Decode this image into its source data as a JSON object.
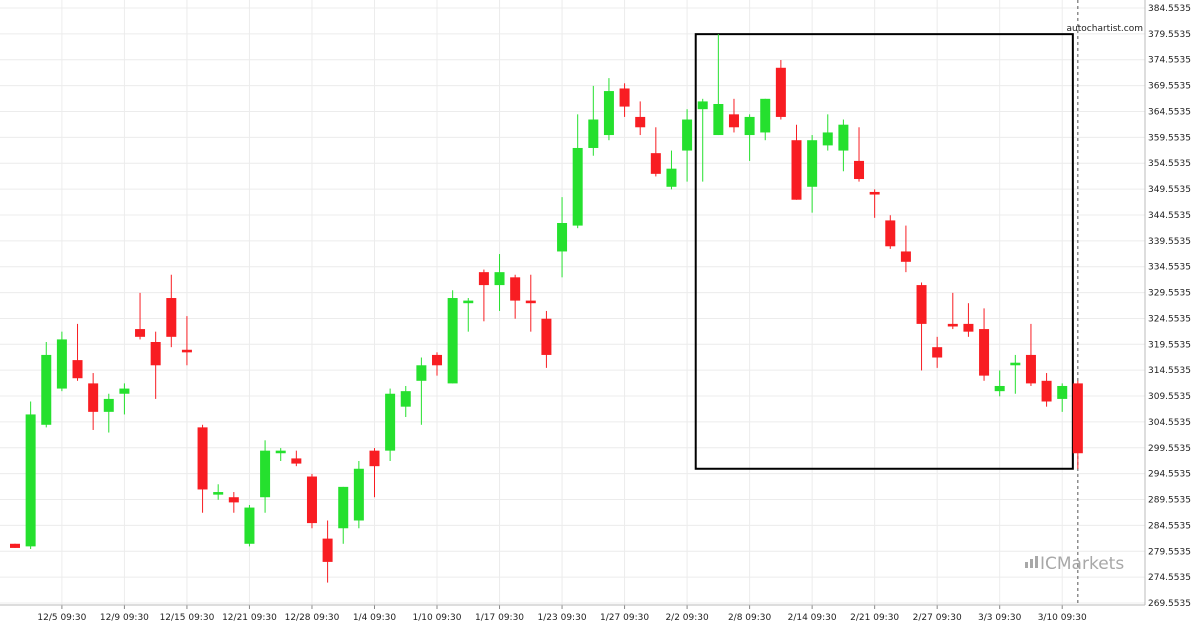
{
  "chart_data": {
    "type": "candlestick",
    "watermark": "autochartist.com",
    "brand": "ICMarkets",
    "colors": {
      "up": "#25e02e",
      "down": "#f81d22",
      "grid": "#ececec",
      "axis_text": "#222222",
      "box": "#000000",
      "watermark": "#a8a8a8"
    },
    "y_ticks": [
      "384.5535",
      "379.5535",
      "374.5535",
      "369.5535",
      "364.5535",
      "359.5535",
      "354.5535",
      "349.5535",
      "344.5535",
      "339.5535",
      "334.5535",
      "329.5535",
      "324.5535",
      "319.5535",
      "314.5535",
      "309.5535",
      "304.5535",
      "299.5535",
      "294.5535",
      "289.5535",
      "284.5535",
      "279.5535",
      "274.5535",
      "269.5535"
    ],
    "ylim": [
      268.5,
      385.5
    ],
    "x_ticks": [
      {
        "label": "12/5 09:30",
        "i": 3
      },
      {
        "label": "12/9 09:30",
        "i": 7
      },
      {
        "label": "12/15 09:30",
        "i": 11
      },
      {
        "label": "12/21 09:30",
        "i": 15
      },
      {
        "label": "12/28 09:30",
        "i": 19
      },
      {
        "label": "1/4 09:30",
        "i": 23
      },
      {
        "label": "1/10 09:30",
        "i": 27
      },
      {
        "label": "1/17 09:30",
        "i": 31
      },
      {
        "label": "1/23 09:30",
        "i": 35
      },
      {
        "label": "1/27 09:30",
        "i": 39
      },
      {
        "label": "2/2 09:30",
        "i": 43
      },
      {
        "label": "2/8 09:30",
        "i": 47
      },
      {
        "label": "2/14 09:30",
        "i": 51
      },
      {
        "label": "2/21 09:30",
        "i": 55
      },
      {
        "label": "2/27 09:30",
        "i": 59
      },
      {
        "label": "3/3 09:30",
        "i": 63
      },
      {
        "label": "3/10 09:30",
        "i": 67
      }
    ],
    "candles": [
      {
        "o": 281.0,
        "h": 281.0,
        "l": 280.2,
        "c": 280.2
      },
      {
        "o": 280.5,
        "h": 308.5,
        "l": 280.0,
        "c": 306.0
      },
      {
        "o": 304.0,
        "h": 320.0,
        "l": 303.5,
        "c": 317.5
      },
      {
        "o": 311.0,
        "h": 322.0,
        "l": 310.5,
        "c": 320.5
      },
      {
        "o": 316.5,
        "h": 323.5,
        "l": 312.5,
        "c": 313.0
      },
      {
        "o": 312.0,
        "h": 314.0,
        "l": 303.0,
        "c": 306.5
      },
      {
        "o": 306.5,
        "h": 310.0,
        "l": 302.5,
        "c": 309.0
      },
      {
        "o": 310.0,
        "h": 312.0,
        "l": 306.0,
        "c": 311.0
      },
      {
        "o": 322.5,
        "h": 329.5,
        "l": 320.5,
        "c": 321.0
      },
      {
        "o": 320.0,
        "h": 322.0,
        "l": 309.0,
        "c": 315.5
      },
      {
        "o": 328.5,
        "h": 333.0,
        "l": 319.0,
        "c": 321.0
      },
      {
        "o": 318.5,
        "h": 325.0,
        "l": 315.5,
        "c": 318.0
      },
      {
        "o": 303.5,
        "h": 304.0,
        "l": 287.0,
        "c": 291.5
      },
      {
        "o": 290.5,
        "h": 292.5,
        "l": 289.5,
        "c": 291.0
      },
      {
        "o": 290.0,
        "h": 291.0,
        "l": 287.0,
        "c": 289.0
      },
      {
        "o": 281.0,
        "h": 288.5,
        "l": 280.5,
        "c": 288.0
      },
      {
        "o": 290.0,
        "h": 301.0,
        "l": 287.0,
        "c": 299.0
      },
      {
        "o": 298.5,
        "h": 299.5,
        "l": 297.0,
        "c": 299.0
      },
      {
        "o": 297.5,
        "h": 299.0,
        "l": 296.0,
        "c": 296.5
      },
      {
        "o": 294.0,
        "h": 294.5,
        "l": 284.0,
        "c": 285.0
      },
      {
        "o": 282.0,
        "h": 285.5,
        "l": 273.5,
        "c": 277.5
      },
      {
        "o": 284.0,
        "h": 292.0,
        "l": 281.0,
        "c": 292.0
      },
      {
        "o": 285.5,
        "h": 297.0,
        "l": 284.0,
        "c": 295.5
      },
      {
        "o": 299.0,
        "h": 299.5,
        "l": 290.0,
        "c": 296.0
      },
      {
        "o": 299.0,
        "h": 311.0,
        "l": 297.0,
        "c": 310.0
      },
      {
        "o": 307.5,
        "h": 311.5,
        "l": 305.5,
        "c": 310.5
      },
      {
        "o": 312.5,
        "h": 317.0,
        "l": 304.0,
        "c": 315.5
      },
      {
        "o": 317.5,
        "h": 318.0,
        "l": 313.5,
        "c": 315.5
      },
      {
        "o": 312.0,
        "h": 330.0,
        "l": 312.0,
        "c": 328.5
      },
      {
        "o": 327.5,
        "h": 328.5,
        "l": 322.0,
        "c": 328.0
      },
      {
        "o": 333.5,
        "h": 334.0,
        "l": 324.0,
        "c": 331.0
      },
      {
        "o": 331.0,
        "h": 337.0,
        "l": 326.0,
        "c": 333.5
      },
      {
        "o": 332.5,
        "h": 333.0,
        "l": 324.5,
        "c": 328.0
      },
      {
        "o": 328.0,
        "h": 333.0,
        "l": 322.0,
        "c": 327.5
      },
      {
        "o": 324.5,
        "h": 326.0,
        "l": 315.0,
        "c": 317.5
      },
      {
        "o": 337.5,
        "h": 348.0,
        "l": 332.5,
        "c": 343.0
      },
      {
        "o": 342.5,
        "h": 364.0,
        "l": 342.0,
        "c": 357.5
      },
      {
        "o": 357.5,
        "h": 369.5,
        "l": 356.0,
        "c": 363.0
      },
      {
        "o": 360.0,
        "h": 371.0,
        "l": 359.0,
        "c": 368.5
      },
      {
        "o": 369.0,
        "h": 370.0,
        "l": 363.5,
        "c": 365.5
      },
      {
        "o": 363.5,
        "h": 366.5,
        "l": 360.0,
        "c": 361.5
      },
      {
        "o": 356.5,
        "h": 361.5,
        "l": 352.0,
        "c": 352.5
      },
      {
        "o": 350.0,
        "h": 357.0,
        "l": 349.5,
        "c": 353.5
      },
      {
        "o": 357.0,
        "h": 365.0,
        "l": 351.0,
        "c": 363.0
      },
      {
        "o": 365.0,
        "h": 367.0,
        "l": 351.0,
        "c": 366.5
      },
      {
        "o": 360.0,
        "h": 379.5,
        "l": 360.0,
        "c": 366.0
      },
      {
        "o": 364.0,
        "h": 367.0,
        "l": 360.5,
        "c": 361.5
      },
      {
        "o": 360.0,
        "h": 364.0,
        "l": 355.0,
        "c": 363.5
      },
      {
        "o": 360.5,
        "h": 367.0,
        "l": 359.0,
        "c": 367.0
      },
      {
        "o": 373.0,
        "h": 374.5,
        "l": 363.0,
        "c": 363.5
      },
      {
        "o": 359.0,
        "h": 362.0,
        "l": 347.5,
        "c": 347.5
      },
      {
        "o": 350.0,
        "h": 360.0,
        "l": 345.0,
        "c": 359.0
      },
      {
        "o": 358.0,
        "h": 364.0,
        "l": 357.0,
        "c": 360.5
      },
      {
        "o": 357.0,
        "h": 363.0,
        "l": 353.0,
        "c": 362.0
      },
      {
        "o": 355.0,
        "h": 361.5,
        "l": 351.0,
        "c": 351.5
      },
      {
        "o": 349.0,
        "h": 349.5,
        "l": 344.0,
        "c": 348.5
      },
      {
        "o": 343.5,
        "h": 344.5,
        "l": 338.0,
        "c": 338.5
      },
      {
        "o": 337.5,
        "h": 342.5,
        "l": 333.5,
        "c": 335.5
      },
      {
        "o": 331.0,
        "h": 331.5,
        "l": 314.5,
        "c": 323.5
      },
      {
        "o": 319.0,
        "h": 321.0,
        "l": 315.0,
        "c": 317.0
      },
      {
        "o": 323.5,
        "h": 329.5,
        "l": 322.5,
        "c": 323.0
      },
      {
        "o": 323.5,
        "h": 327.5,
        "l": 321.0,
        "c": 322.0
      },
      {
        "o": 322.5,
        "h": 326.5,
        "l": 312.5,
        "c": 313.5
      },
      {
        "o": 310.5,
        "h": 314.5,
        "l": 309.5,
        "c": 311.5
      },
      {
        "o": 315.5,
        "h": 317.5,
        "l": 310.0,
        "c": 316.0
      },
      {
        "o": 317.5,
        "h": 323.5,
        "l": 311.5,
        "c": 312.0
      },
      {
        "o": 312.5,
        "h": 314.0,
        "l": 307.5,
        "c": 308.5
      },
      {
        "o": 309.0,
        "h": 312.0,
        "l": 306.5,
        "c": 311.5
      },
      {
        "o": 312.0,
        "h": 312.5,
        "l": 295.5,
        "c": 298.5
      }
    ],
    "pattern_box": {
      "start_i": 44,
      "end_i": 68,
      "top": 379.5,
      "bottom": 295.5
    }
  }
}
